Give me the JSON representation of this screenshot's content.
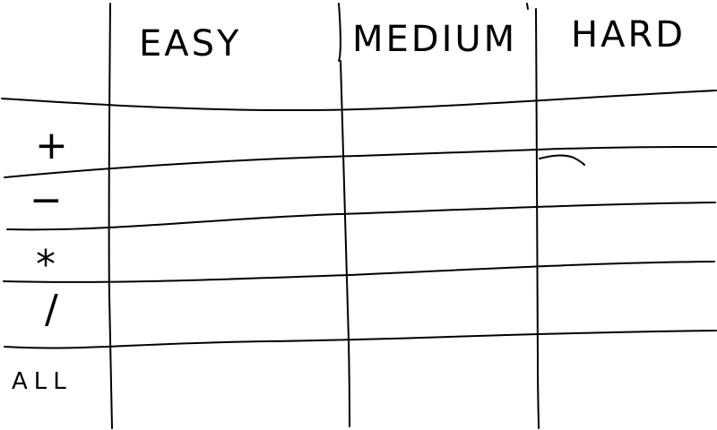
{
  "grid": {
    "columns": [
      "EASY",
      "MEDIUM",
      "HARD"
    ],
    "rows": [
      "+",
      "−",
      "*",
      "/",
      "ALL"
    ]
  },
  "colors": {
    "ink": "#000000",
    "paper": "#ffffff"
  }
}
